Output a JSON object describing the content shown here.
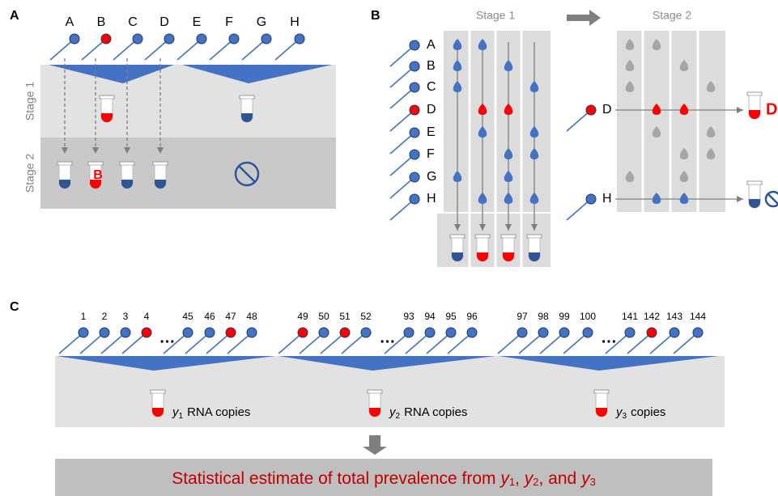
{
  "panel_a": {
    "label": "A",
    "samples": [
      "A",
      "B",
      "C",
      "D",
      "E",
      "F",
      "G",
      "H"
    ],
    "stages": [
      "Stage 1",
      "Stage 2"
    ],
    "positive_tube": "B"
  },
  "panel_b": {
    "label": "B",
    "stage_1": "Stage 1",
    "stage_2": "Stage 2",
    "samples": [
      "A",
      "B",
      "C",
      "D",
      "E",
      "F",
      "G",
      "H"
    ],
    "retest": [
      "D",
      "H"
    ],
    "positive_result": "D"
  },
  "panel_c": {
    "label": "C",
    "ellipsis": "…",
    "groups": [
      {
        "numbers": [
          "1",
          "2",
          "3",
          "4",
          "45",
          "46",
          "47",
          "48"
        ],
        "var": "y",
        "sub": "1",
        "text": "RNA  copies"
      },
      {
        "numbers": [
          "49",
          "50",
          "51",
          "52",
          "93",
          "94",
          "95",
          "96"
        ],
        "var": "y",
        "sub": "2",
        "text": "RNA copies"
      },
      {
        "numbers": [
          "97",
          "98",
          "99",
          "100",
          "141",
          "142",
          "143",
          "144"
        ],
        "var": "y",
        "sub": "3",
        "text": "copies"
      }
    ],
    "footer": {
      "parts": [
        "Statistical estimate of total prevalence from ",
        ", ",
        ", and "
      ],
      "terms": [
        {
          "var": "y",
          "sub": "1"
        },
        {
          "var": "y",
          "sub": "2"
        },
        {
          "var": "y",
          "sub": "3"
        }
      ]
    }
  }
}
